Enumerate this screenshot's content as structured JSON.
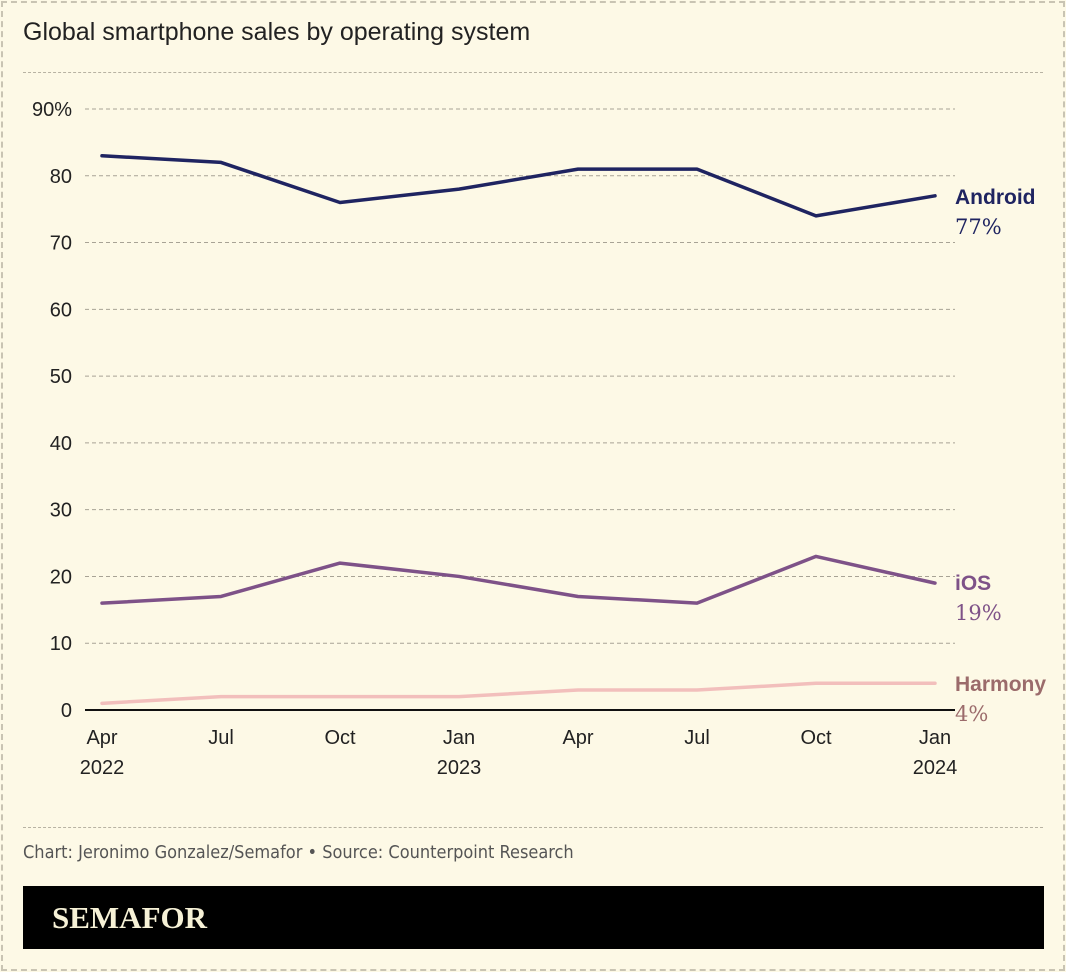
{
  "title": "Global smartphone sales by operating system",
  "credit": "Chart: Jeronimo Gonzalez/Semafor • Source: Counterpoint Research",
  "logo": "SEMAFOR",
  "chart_data": {
    "type": "line",
    "title": "Global smartphone sales by operating system",
    "x": [
      "Apr 2022",
      "Jul 2022",
      "Oct 2022",
      "Jan 2023",
      "Apr 2023",
      "Jul 2023",
      "Oct 2023",
      "Jan 2024"
    ],
    "x_tick_labels": [
      [
        "Apr",
        "2022"
      ],
      [
        "Jul",
        ""
      ],
      [
        "Oct",
        ""
      ],
      [
        "Jan",
        "2023"
      ],
      [
        "Apr",
        ""
      ],
      [
        "Jul",
        ""
      ],
      [
        "Oct",
        ""
      ],
      [
        "Jan",
        "2024"
      ]
    ],
    "y_ticks": [
      0,
      10,
      20,
      30,
      40,
      50,
      60,
      70,
      80,
      90
    ],
    "y_tick_labels": [
      "0",
      "10",
      "20",
      "30",
      "40",
      "50",
      "60",
      "70",
      "80",
      "90%"
    ],
    "ylim": [
      0,
      90
    ],
    "grid": true,
    "legend": "direct labels at right",
    "series": [
      {
        "name": "Android",
        "end_label": "77%",
        "color": "#1f2461",
        "values": [
          83,
          82,
          76,
          78,
          81,
          81,
          74,
          77
        ]
      },
      {
        "name": "iOS",
        "end_label": "19%",
        "color": "#7e5288",
        "values": [
          16,
          17,
          22,
          20,
          17,
          16,
          23,
          19
        ]
      },
      {
        "name": "Harmony",
        "end_label": "4%",
        "color": "#f2bfbc",
        "label_color": "#9b6b6b",
        "values": [
          1,
          2,
          2,
          2,
          3,
          3,
          4,
          4
        ]
      }
    ]
  }
}
